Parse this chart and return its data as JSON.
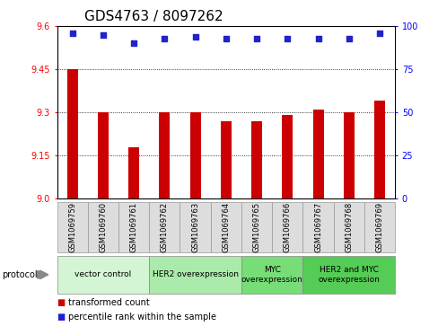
{
  "title": "GDS4763 / 8097262",
  "samples": [
    "GSM1069759",
    "GSM1069760",
    "GSM1069761",
    "GSM1069762",
    "GSM1069763",
    "GSM1069764",
    "GSM1069765",
    "GSM1069766",
    "GSM1069767",
    "GSM1069768",
    "GSM1069769"
  ],
  "bar_values": [
    9.45,
    9.3,
    9.18,
    9.3,
    9.3,
    9.27,
    9.27,
    9.29,
    9.31,
    9.3,
    9.34
  ],
  "percentile_values": [
    96,
    95,
    90,
    93,
    94,
    93,
    93,
    93,
    93,
    93,
    96
  ],
  "ylim_left": [
    9.0,
    9.6
  ],
  "ylim_right": [
    0,
    100
  ],
  "yticks_left": [
    9.0,
    9.15,
    9.3,
    9.45,
    9.6
  ],
  "yticks_right": [
    0,
    25,
    50,
    75,
    100
  ],
  "bar_color": "#CC0000",
  "dot_color": "#2222CC",
  "group_colors": [
    "#d4f5d4",
    "#aaeaaa",
    "#77dd77",
    "#55cc55"
  ],
  "groups": [
    {
      "label": "vector control",
      "start": 0,
      "end": 2
    },
    {
      "label": "HER2 overexpression",
      "start": 3,
      "end": 5
    },
    {
      "label": "MYC\noverexpression",
      "start": 6,
      "end": 7
    },
    {
      "label": "HER2 and MYC\noverexpression",
      "start": 8,
      "end": 10
    }
  ],
  "protocol_label": "protocol",
  "legend_bar_label": "transformed count",
  "legend_dot_label": "percentile rank within the sample",
  "title_fontsize": 11,
  "tick_fontsize": 7,
  "label_fontsize": 6,
  "group_fontsize": 6.5,
  "legend_fontsize": 7
}
